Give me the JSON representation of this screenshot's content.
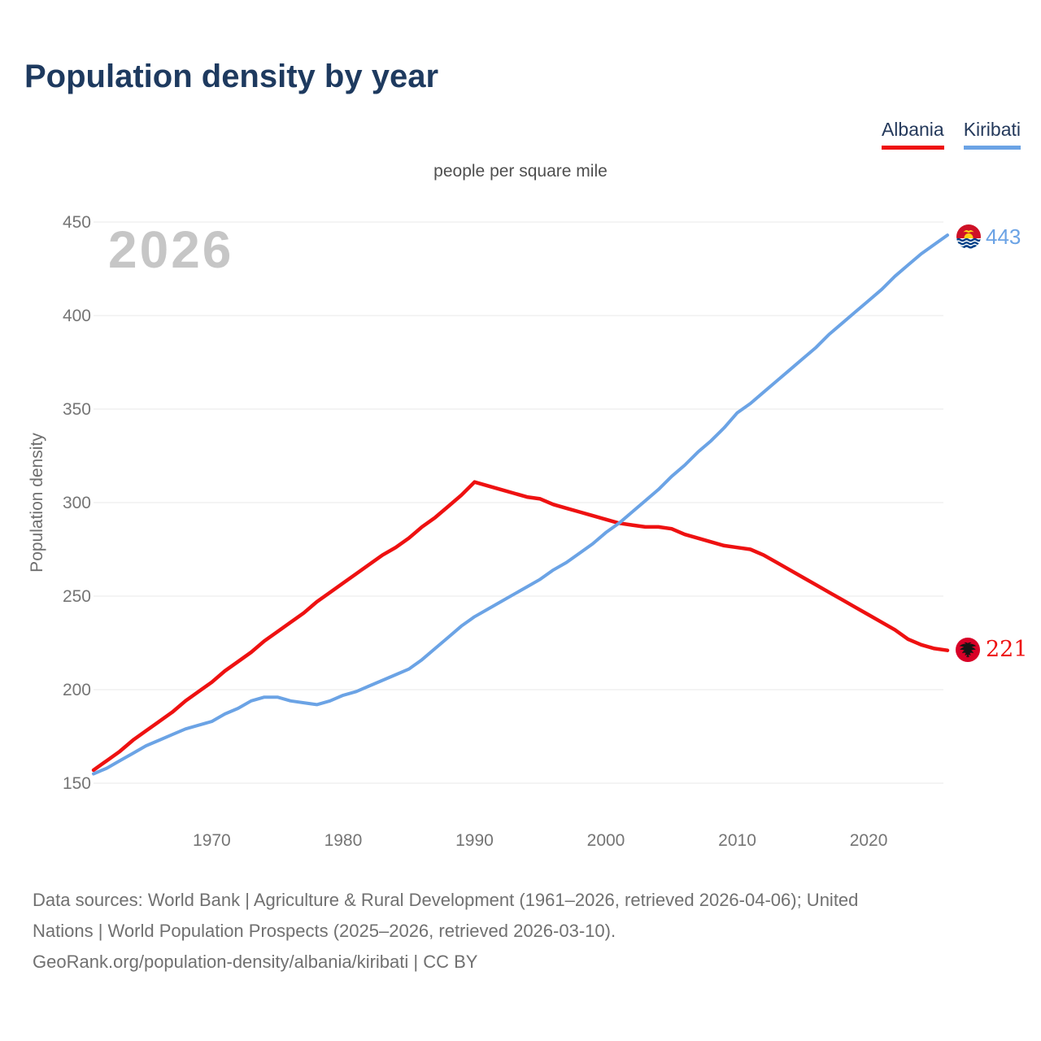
{
  "header": {
    "title": "Population density by year"
  },
  "legend": {
    "items": [
      {
        "label": "Albania",
        "color": "#ee1111"
      },
      {
        "label": "Kiribati",
        "color": "#6ba3e5"
      }
    ]
  },
  "chart": {
    "subtitle": "people per square mile",
    "watermark": "2026",
    "ylabel": "Population density"
  },
  "chart_data": {
    "type": "line",
    "title": "Population density by year",
    "subtitle": "people per square mile",
    "ylabel": "Population density",
    "xlabel": "",
    "x_range": [
      1961,
      2026
    ],
    "ylim": [
      150,
      450
    ],
    "yticks": [
      150,
      200,
      250,
      300,
      350,
      400,
      450
    ],
    "xticks": [
      1970,
      1980,
      1990,
      2000,
      2010,
      2020
    ],
    "grid": "horizontal",
    "legend_position": "top-right",
    "x": [
      1961,
      1962,
      1963,
      1964,
      1965,
      1966,
      1967,
      1968,
      1969,
      1970,
      1971,
      1972,
      1973,
      1974,
      1975,
      1976,
      1977,
      1978,
      1979,
      1980,
      1981,
      1982,
      1983,
      1984,
      1985,
      1986,
      1987,
      1988,
      1989,
      1990,
      1991,
      1992,
      1993,
      1994,
      1995,
      1996,
      1997,
      1998,
      1999,
      2000,
      2001,
      2002,
      2003,
      2004,
      2005,
      2006,
      2007,
      2008,
      2009,
      2010,
      2011,
      2012,
      2013,
      2014,
      2015,
      2016,
      2017,
      2018,
      2019,
      2020,
      2021,
      2022,
      2023,
      2024,
      2025,
      2026
    ],
    "series": [
      {
        "name": "Albania",
        "color": "#ee1111",
        "end_label": "221",
        "end_value": 221,
        "values": [
          157,
          162,
          167,
          173,
          178,
          183,
          188,
          194,
          199,
          204,
          210,
          215,
          220,
          226,
          231,
          236,
          241,
          247,
          252,
          257,
          262,
          267,
          272,
          276,
          281,
          287,
          292,
          298,
          304,
          311,
          309,
          307,
          305,
          303,
          302,
          299,
          297,
          295,
          293,
          291,
          289,
          288,
          287,
          287,
          286,
          283,
          281,
          279,
          277,
          276,
          275,
          272,
          268,
          264,
          260,
          256,
          252,
          248,
          244,
          240,
          236,
          232,
          227,
          224,
          222,
          221
        ]
      },
      {
        "name": "Kiribati",
        "color": "#6ba3e5",
        "end_label": "443",
        "end_value": 443,
        "values": [
          155,
          158,
          162,
          166,
          170,
          173,
          176,
          179,
          181,
          183,
          187,
          190,
          194,
          196,
          196,
          194,
          193,
          192,
          194,
          197,
          199,
          202,
          205,
          208,
          211,
          216,
          222,
          228,
          234,
          239,
          243,
          247,
          251,
          255,
          259,
          264,
          268,
          273,
          278,
          284,
          289,
          295,
          301,
          307,
          314,
          320,
          327,
          333,
          340,
          348,
          353,
          359,
          365,
          371,
          377,
          383,
          390,
          396,
          402,
          408,
          414,
          421,
          427,
          433,
          438,
          443
        ]
      }
    ]
  },
  "end_labels": {
    "kiribati": "443",
    "albania": "221"
  },
  "footer": {
    "line1": "Data sources: World Bank | Agriculture & Rural Development (1961–2026, retrieved 2026-04-06); United",
    "line2": "Nations | World Population Prospects (2025–2026, retrieved 2026-03-10).",
    "line3": "GeoRank.org/population-density/albania/kiribati | CC BY"
  }
}
